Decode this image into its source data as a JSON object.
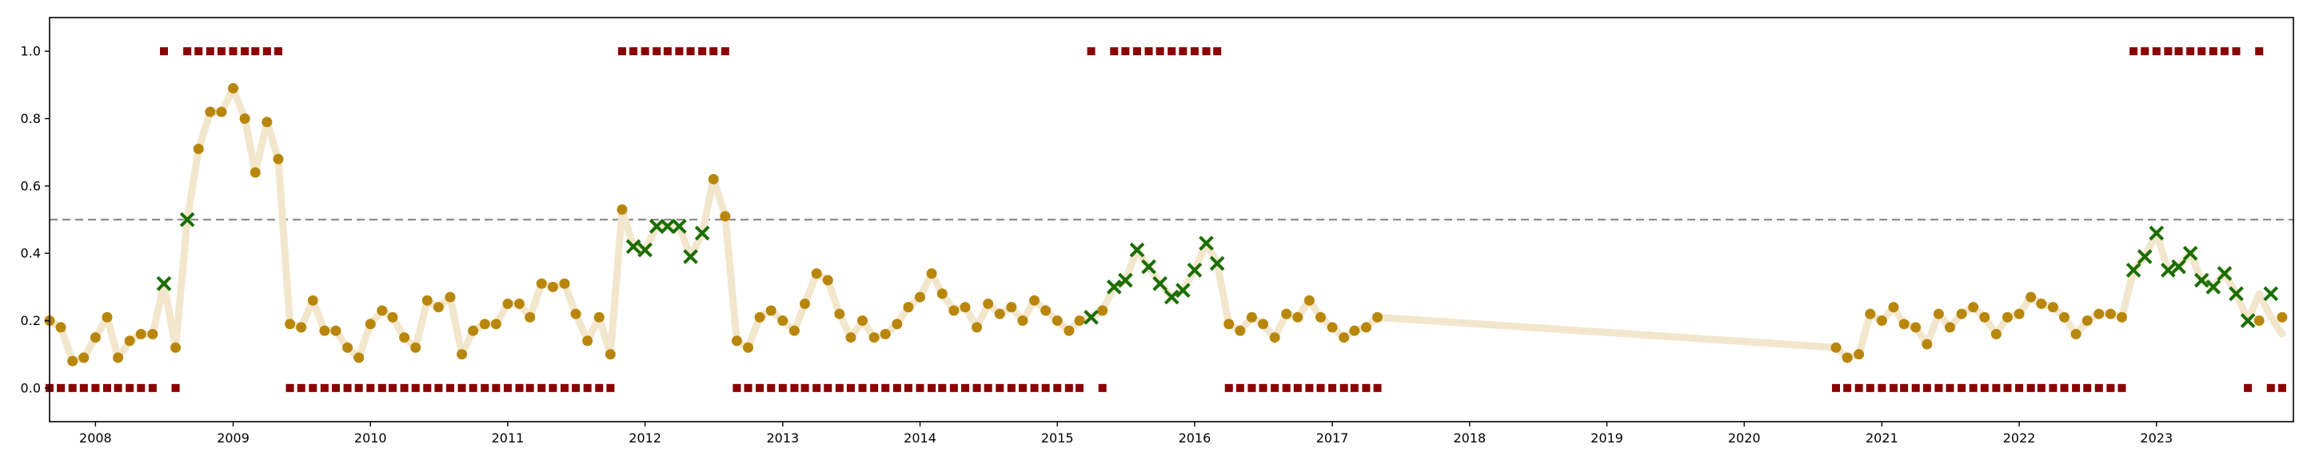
{
  "colors": {
    "line": "#f2e6cc",
    "circle": "#b8860b",
    "cross": "#1a6e00",
    "square": "#8b0000",
    "threshold": "#8c8c8c",
    "axis": "#000000"
  },
  "chart_data": {
    "type": "scatter",
    "title": "",
    "xlabel": "",
    "ylabel": "",
    "xlim": [
      "2007-09-01",
      "2023-12-31"
    ],
    "ylim": [
      -0.1,
      1.1
    ],
    "yticks": [
      0.0,
      0.2,
      0.4,
      0.6,
      0.8,
      1.0
    ],
    "ytick_labels": [
      "0.0",
      "0.2",
      "0.4",
      "0.6",
      "0.8",
      "1.0"
    ],
    "xticks": [
      "2008-01-01",
      "2009-01-01",
      "2010-01-01",
      "2011-01-01",
      "2012-01-01",
      "2013-01-01",
      "2014-01-01",
      "2015-01-01",
      "2016-01-01",
      "2017-01-01",
      "2018-01-01",
      "2019-01-01",
      "2020-01-01",
      "2021-01-01",
      "2022-01-01",
      "2023-01-01"
    ],
    "xtick_labels": [
      "2008",
      "2009",
      "2010",
      "2011",
      "2012",
      "2013",
      "2014",
      "2015",
      "2016",
      "2017",
      "2018",
      "2019",
      "2020",
      "2021",
      "2022",
      "2023"
    ],
    "grid": false,
    "threshold": 0.5,
    "series": [
      {
        "marker": "line",
        "x": [
          "2007-09",
          "2007-10",
          "2007-11",
          "2007-12",
          "2008-01",
          "2008-02",
          "2008-03",
          "2008-04",
          "2008-05",
          "2008-06",
          "2008-07",
          "2008-08",
          "2008-09",
          "2008-10",
          "2008-11",
          "2008-12",
          "2009-01",
          "2009-02",
          "2009-03",
          "2009-04",
          "2009-05",
          "2009-06",
          "2009-07",
          "2009-08",
          "2009-09",
          "2009-10",
          "2009-11",
          "2009-12",
          "2010-01",
          "2010-02",
          "2010-03",
          "2010-04",
          "2010-05",
          "2010-06",
          "2010-07",
          "2010-08",
          "2010-09",
          "2010-10",
          "2010-11",
          "2010-12",
          "2011-01",
          "2011-02",
          "2011-03",
          "2011-04",
          "2011-05",
          "2011-06",
          "2011-07",
          "2011-08",
          "2011-09",
          "2011-10",
          "2011-11",
          "2011-12",
          "2012-01",
          "2012-02",
          "2012-03",
          "2012-04",
          "2012-05",
          "2012-06",
          "2012-07",
          "2012-08",
          "2012-09",
          "2012-10",
          "2012-11",
          "2012-12",
          "2013-01",
          "2013-02",
          "2013-03",
          "2013-04",
          "2013-05",
          "2013-06",
          "2013-07",
          "2013-08",
          "2013-09",
          "2013-10",
          "2013-11",
          "2013-12",
          "2014-01",
          "2014-02",
          "2014-03",
          "2014-04",
          "2014-05",
          "2014-06",
          "2014-07",
          "2014-08",
          "2014-09",
          "2014-10",
          "2014-11",
          "2014-12",
          "2015-01",
          "2015-02",
          "2015-03",
          "2015-04",
          "2015-05",
          "2015-06",
          "2015-07",
          "2015-08",
          "2015-09",
          "2015-10",
          "2015-11",
          "2015-12",
          "2016-01",
          "2016-02",
          "2016-03",
          "2016-04",
          "2016-05",
          "2016-06",
          "2016-07",
          "2016-08",
          "2016-09",
          "2016-10",
          "2016-11",
          "2016-12",
          "2017-01",
          "2017-02",
          "2017-03",
          "2017-04",
          "2017-05",
          "2020-09",
          "2020-10",
          "2020-11",
          "2020-12",
          "2021-01",
          "2021-02",
          "2021-03",
          "2021-04",
          "2021-05",
          "2021-06",
          "2021-07",
          "2021-08",
          "2021-09",
          "2021-10",
          "2021-11",
          "2021-12",
          "2022-01",
          "2022-02",
          "2022-03",
          "2022-04",
          "2022-05",
          "2022-06",
          "2022-07",
          "2022-08",
          "2022-09",
          "2022-10",
          "2022-11",
          "2022-12",
          "2023-01",
          "2023-02",
          "2023-03",
          "2023-04",
          "2023-05",
          "2023-06",
          "2023-07",
          "2023-08",
          "2023-09",
          "2023-10",
          "2023-11",
          "2023-12"
        ],
        "y": [
          0.2,
          0.18,
          0.08,
          0.09,
          0.15,
          0.21,
          0.09,
          0.14,
          0.16,
          0.16,
          0.31,
          0.12,
          0.5,
          0.71,
          0.82,
          0.82,
          0.89,
          0.8,
          0.64,
          0.79,
          0.68,
          0.19,
          0.18,
          0.26,
          0.17,
          0.17,
          0.12,
          0.09,
          0.19,
          0.23,
          0.21,
          0.15,
          0.12,
          0.26,
          0.24,
          0.27,
          0.1,
          0.17,
          0.19,
          0.19,
          0.25,
          0.25,
          0.21,
          0.31,
          0.3,
          0.31,
          0.22,
          0.14,
          0.21,
          0.1,
          0.53,
          0.42,
          0.41,
          0.48,
          0.48,
          0.48,
          0.39,
          0.46,
          0.62,
          0.51,
          0.14,
          0.12,
          0.21,
          0.23,
          0.2,
          0.17,
          0.25,
          0.34,
          0.32,
          0.22,
          0.15,
          0.2,
          0.15,
          0.16,
          0.19,
          0.24,
          0.27,
          0.34,
          0.28,
          0.23,
          0.24,
          0.18,
          0.25,
          0.22,
          0.24,
          0.2,
          0.26,
          0.23,
          0.2,
          0.17,
          0.2,
          0.21,
          0.23,
          0.3,
          0.32,
          0.41,
          0.36,
          0.31,
          0.27,
          0.29,
          0.35,
          0.43,
          0.37,
          0.19,
          0.17,
          0.21,
          0.19,
          0.15,
          0.22,
          0.21,
          0.26,
          0.21,
          0.18,
          0.15,
          0.17,
          0.18,
          0.21,
          0.12,
          0.09,
          0.1,
          0.22,
          0.2,
          0.24,
          0.19,
          0.18,
          0.13,
          0.22,
          0.18,
          0.22,
          0.24,
          0.21,
          0.16,
          0.21,
          0.22,
          0.27,
          0.25,
          0.24,
          0.21,
          0.16,
          0.2,
          0.22,
          0.22,
          0.21,
          0.35,
          0.39,
          0.46,
          0.35,
          0.36,
          0.4,
          0.32,
          0.3,
          0.34,
          0.28,
          0.2,
          0.28,
          0.21,
          0.16
        ]
      },
      {
        "marker": "circle",
        "x": [
          "2007-09",
          "2007-10",
          "2007-11",
          "2007-12",
          "2008-01",
          "2008-02",
          "2008-03",
          "2008-04",
          "2008-05",
          "2008-06",
          "2008-08",
          "2008-10",
          "2008-11",
          "2008-12",
          "2009-01",
          "2009-02",
          "2009-03",
          "2009-04",
          "2009-05",
          "2009-06",
          "2009-07",
          "2009-08",
          "2009-09",
          "2009-10",
          "2009-11",
          "2009-12",
          "2010-01",
          "2010-02",
          "2010-03",
          "2010-04",
          "2010-05",
          "2010-06",
          "2010-07",
          "2010-08",
          "2010-09",
          "2010-10",
          "2010-11",
          "2010-12",
          "2011-01",
          "2011-02",
          "2011-03",
          "2011-04",
          "2011-05",
          "2011-06",
          "2011-07",
          "2011-08",
          "2011-09",
          "2011-10",
          "2011-11",
          "2012-07",
          "2012-08",
          "2012-09",
          "2012-10",
          "2012-11",
          "2012-12",
          "2013-01",
          "2013-02",
          "2013-03",
          "2013-04",
          "2013-05",
          "2013-06",
          "2013-07",
          "2013-08",
          "2013-09",
          "2013-10",
          "2013-11",
          "2013-12",
          "2014-01",
          "2014-02",
          "2014-03",
          "2014-04",
          "2014-05",
          "2014-06",
          "2014-07",
          "2014-08",
          "2014-09",
          "2014-10",
          "2014-11",
          "2014-12",
          "2015-01",
          "2015-02",
          "2015-03",
          "2015-05",
          "2016-04",
          "2016-05",
          "2016-06",
          "2016-07",
          "2016-08",
          "2016-09",
          "2016-10",
          "2016-11",
          "2016-12",
          "2017-01",
          "2017-02",
          "2017-03",
          "2017-04",
          "2017-05",
          "2020-09",
          "2020-10",
          "2020-11",
          "2020-12",
          "2021-01",
          "2021-02",
          "2021-03",
          "2021-04",
          "2021-05",
          "2021-06",
          "2021-07",
          "2021-08",
          "2021-09",
          "2021-10",
          "2021-11",
          "2021-12",
          "2022-01",
          "2022-02",
          "2022-03",
          "2022-04",
          "2022-05",
          "2022-06",
          "2022-07",
          "2022-08",
          "2022-09",
          "2022-10",
          "2023-10",
          "2023-12"
        ],
        "y": [
          0.2,
          0.18,
          0.08,
          0.09,
          0.15,
          0.21,
          0.09,
          0.14,
          0.16,
          0.16,
          0.12,
          0.71,
          0.82,
          0.82,
          0.89,
          0.8,
          0.64,
          0.79,
          0.68,
          0.19,
          0.18,
          0.26,
          0.17,
          0.17,
          0.12,
          0.09,
          0.19,
          0.23,
          0.21,
          0.15,
          0.12,
          0.26,
          0.24,
          0.27,
          0.1,
          0.17,
          0.19,
          0.19,
          0.25,
          0.25,
          0.21,
          0.31,
          0.3,
          0.31,
          0.22,
          0.14,
          0.21,
          0.1,
          0.53,
          0.62,
          0.51,
          0.14,
          0.12,
          0.21,
          0.23,
          0.2,
          0.17,
          0.25,
          0.34,
          0.32,
          0.22,
          0.15,
          0.2,
          0.15,
          0.16,
          0.19,
          0.24,
          0.27,
          0.34,
          0.28,
          0.23,
          0.24,
          0.18,
          0.25,
          0.22,
          0.24,
          0.2,
          0.26,
          0.23,
          0.2,
          0.17,
          0.2,
          0.23,
          0.19,
          0.17,
          0.21,
          0.19,
          0.15,
          0.22,
          0.21,
          0.26,
          0.21,
          0.18,
          0.15,
          0.17,
          0.18,
          0.21,
          0.12,
          0.09,
          0.1,
          0.22,
          0.2,
          0.24,
          0.19,
          0.18,
          0.13,
          0.22,
          0.18,
          0.22,
          0.24,
          0.21,
          0.16,
          0.21,
          0.22,
          0.27,
          0.25,
          0.24,
          0.21,
          0.16,
          0.2,
          0.22,
          0.22,
          0.21,
          0.2,
          0.21
        ]
      },
      {
        "marker": "cross",
        "x": [
          "2008-07",
          "2008-09",
          "2011-12",
          "2012-01",
          "2012-02",
          "2012-03",
          "2012-04",
          "2012-05",
          "2012-06",
          "2015-04",
          "2015-06",
          "2015-07",
          "2015-08",
          "2015-09",
          "2015-10",
          "2015-11",
          "2015-12",
          "2016-01",
          "2016-02",
          "2016-03",
          "2022-11",
          "2022-12",
          "2023-01",
          "2023-02",
          "2023-03",
          "2023-04",
          "2023-05",
          "2023-06",
          "2023-07",
          "2023-08",
          "2023-09",
          "2023-11"
        ],
        "y": [
          0.31,
          0.5,
          0.42,
          0.41,
          0.48,
          0.48,
          0.48,
          0.39,
          0.46,
          0.21,
          0.3,
          0.32,
          0.41,
          0.36,
          0.31,
          0.27,
          0.29,
          0.35,
          0.43,
          0.37,
          0.35,
          0.39,
          0.46,
          0.35,
          0.36,
          0.4,
          0.32,
          0.3,
          0.34,
          0.28,
          0.2,
          0.28
        ]
      },
      {
        "marker": "square",
        "x": [
          "2007-09",
          "2007-10",
          "2007-11",
          "2007-12",
          "2008-01",
          "2008-02",
          "2008-03",
          "2008-04",
          "2008-05",
          "2008-06",
          "2008-07",
          "2008-08",
          "2008-09",
          "2008-10",
          "2008-11",
          "2008-12",
          "2009-01",
          "2009-02",
          "2009-03",
          "2009-04",
          "2009-05",
          "2009-06",
          "2009-07",
          "2009-08",
          "2009-09",
          "2009-10",
          "2009-11",
          "2009-12",
          "2010-01",
          "2010-02",
          "2010-03",
          "2010-04",
          "2010-05",
          "2010-06",
          "2010-07",
          "2010-08",
          "2010-09",
          "2010-10",
          "2010-11",
          "2010-12",
          "2011-01",
          "2011-02",
          "2011-03",
          "2011-04",
          "2011-05",
          "2011-06",
          "2011-07",
          "2011-08",
          "2011-09",
          "2011-10",
          "2011-11",
          "2011-12",
          "2012-01",
          "2012-02",
          "2012-03",
          "2012-04",
          "2012-05",
          "2012-06",
          "2012-07",
          "2012-08",
          "2012-09",
          "2012-10",
          "2012-11",
          "2012-12",
          "2013-01",
          "2013-02",
          "2013-03",
          "2013-04",
          "2013-05",
          "2013-06",
          "2013-07",
          "2013-08",
          "2013-09",
          "2013-10",
          "2013-11",
          "2013-12",
          "2014-01",
          "2014-02",
          "2014-03",
          "2014-04",
          "2014-05",
          "2014-06",
          "2014-07",
          "2014-08",
          "2014-09",
          "2014-10",
          "2014-11",
          "2014-12",
          "2015-01",
          "2015-02",
          "2015-03",
          "2015-04",
          "2015-05",
          "2015-06",
          "2015-07",
          "2015-08",
          "2015-09",
          "2015-10",
          "2015-11",
          "2015-12",
          "2016-01",
          "2016-02",
          "2016-03",
          "2016-04",
          "2016-05",
          "2016-06",
          "2016-07",
          "2016-08",
          "2016-09",
          "2016-10",
          "2016-11",
          "2016-12",
          "2017-01",
          "2017-02",
          "2017-03",
          "2017-04",
          "2017-05",
          "2020-09",
          "2020-10",
          "2020-11",
          "2020-12",
          "2021-01",
          "2021-02",
          "2021-03",
          "2021-04",
          "2021-05",
          "2021-06",
          "2021-07",
          "2021-08",
          "2021-09",
          "2021-10",
          "2021-11",
          "2021-12",
          "2022-01",
          "2022-02",
          "2022-03",
          "2022-04",
          "2022-05",
          "2022-06",
          "2022-07",
          "2022-08",
          "2022-09",
          "2022-10",
          "2022-11",
          "2022-12",
          "2023-01",
          "2023-02",
          "2023-03",
          "2023-04",
          "2023-05",
          "2023-06",
          "2023-07",
          "2023-08",
          "2023-09",
          "2023-10",
          "2023-11",
          "2023-12"
        ],
        "y": [
          0,
          0,
          0,
          0,
          0,
          0,
          0,
          0,
          0,
          0,
          1,
          0,
          1,
          1,
          1,
          1,
          1,
          1,
          1,
          1,
          1,
          0,
          0,
          0,
          0,
          0,
          0,
          0,
          0,
          0,
          0,
          0,
          0,
          0,
          0,
          0,
          0,
          0,
          0,
          0,
          0,
          0,
          0,
          0,
          0,
          0,
          0,
          0,
          0,
          0,
          1,
          1,
          1,
          1,
          1,
          1,
          1,
          1,
          1,
          1,
          0,
          0,
          0,
          0,
          0,
          0,
          0,
          0,
          0,
          0,
          0,
          0,
          0,
          0,
          0,
          0,
          0,
          0,
          0,
          0,
          0,
          0,
          0,
          0,
          0,
          0,
          0,
          0,
          0,
          0,
          0,
          1,
          0,
          1,
          1,
          1,
          1,
          1,
          1,
          1,
          1,
          1,
          1,
          0,
          0,
          0,
          0,
          0,
          0,
          0,
          0,
          0,
          0,
          0,
          0,
          0,
          0,
          0,
          0,
          0,
          0,
          0,
          0,
          0,
          0,
          0,
          0,
          0,
          0,
          0,
          0,
          0,
          0,
          0,
          0,
          0,
          0,
          0,
          0,
          0,
          0,
          0,
          0,
          1,
          1,
          1,
          1,
          1,
          1,
          1,
          1,
          1,
          1,
          0,
          1,
          0,
          0
        ]
      }
    ]
  }
}
